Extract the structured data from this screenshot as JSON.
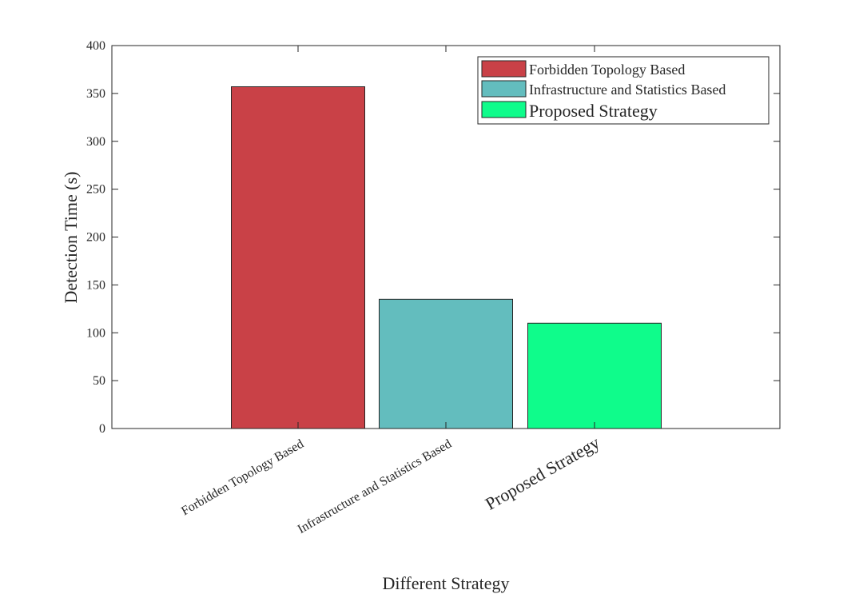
{
  "chart_data": {
    "type": "bar",
    "categories": [
      "Forbidden Topology Based",
      "Infrastructure and Statistics Based",
      "Proposed Strategy"
    ],
    "values": [
      357,
      135,
      110
    ],
    "colors": [
      "#C94147",
      "#63BDBE",
      "#0FFC8B"
    ],
    "xlabel": "Different Strategy",
    "ylabel": "Detection Time (s)",
    "ylim": [
      0,
      400
    ],
    "yticks": [
      0,
      50,
      100,
      150,
      200,
      250,
      300,
      350,
      400
    ],
    "legend": {
      "placement": "top-right",
      "entries": [
        "Forbidden Topology Based",
        "Infrastructure and Statistics Based",
        "Proposed Strategy"
      ]
    },
    "grid": false
  }
}
